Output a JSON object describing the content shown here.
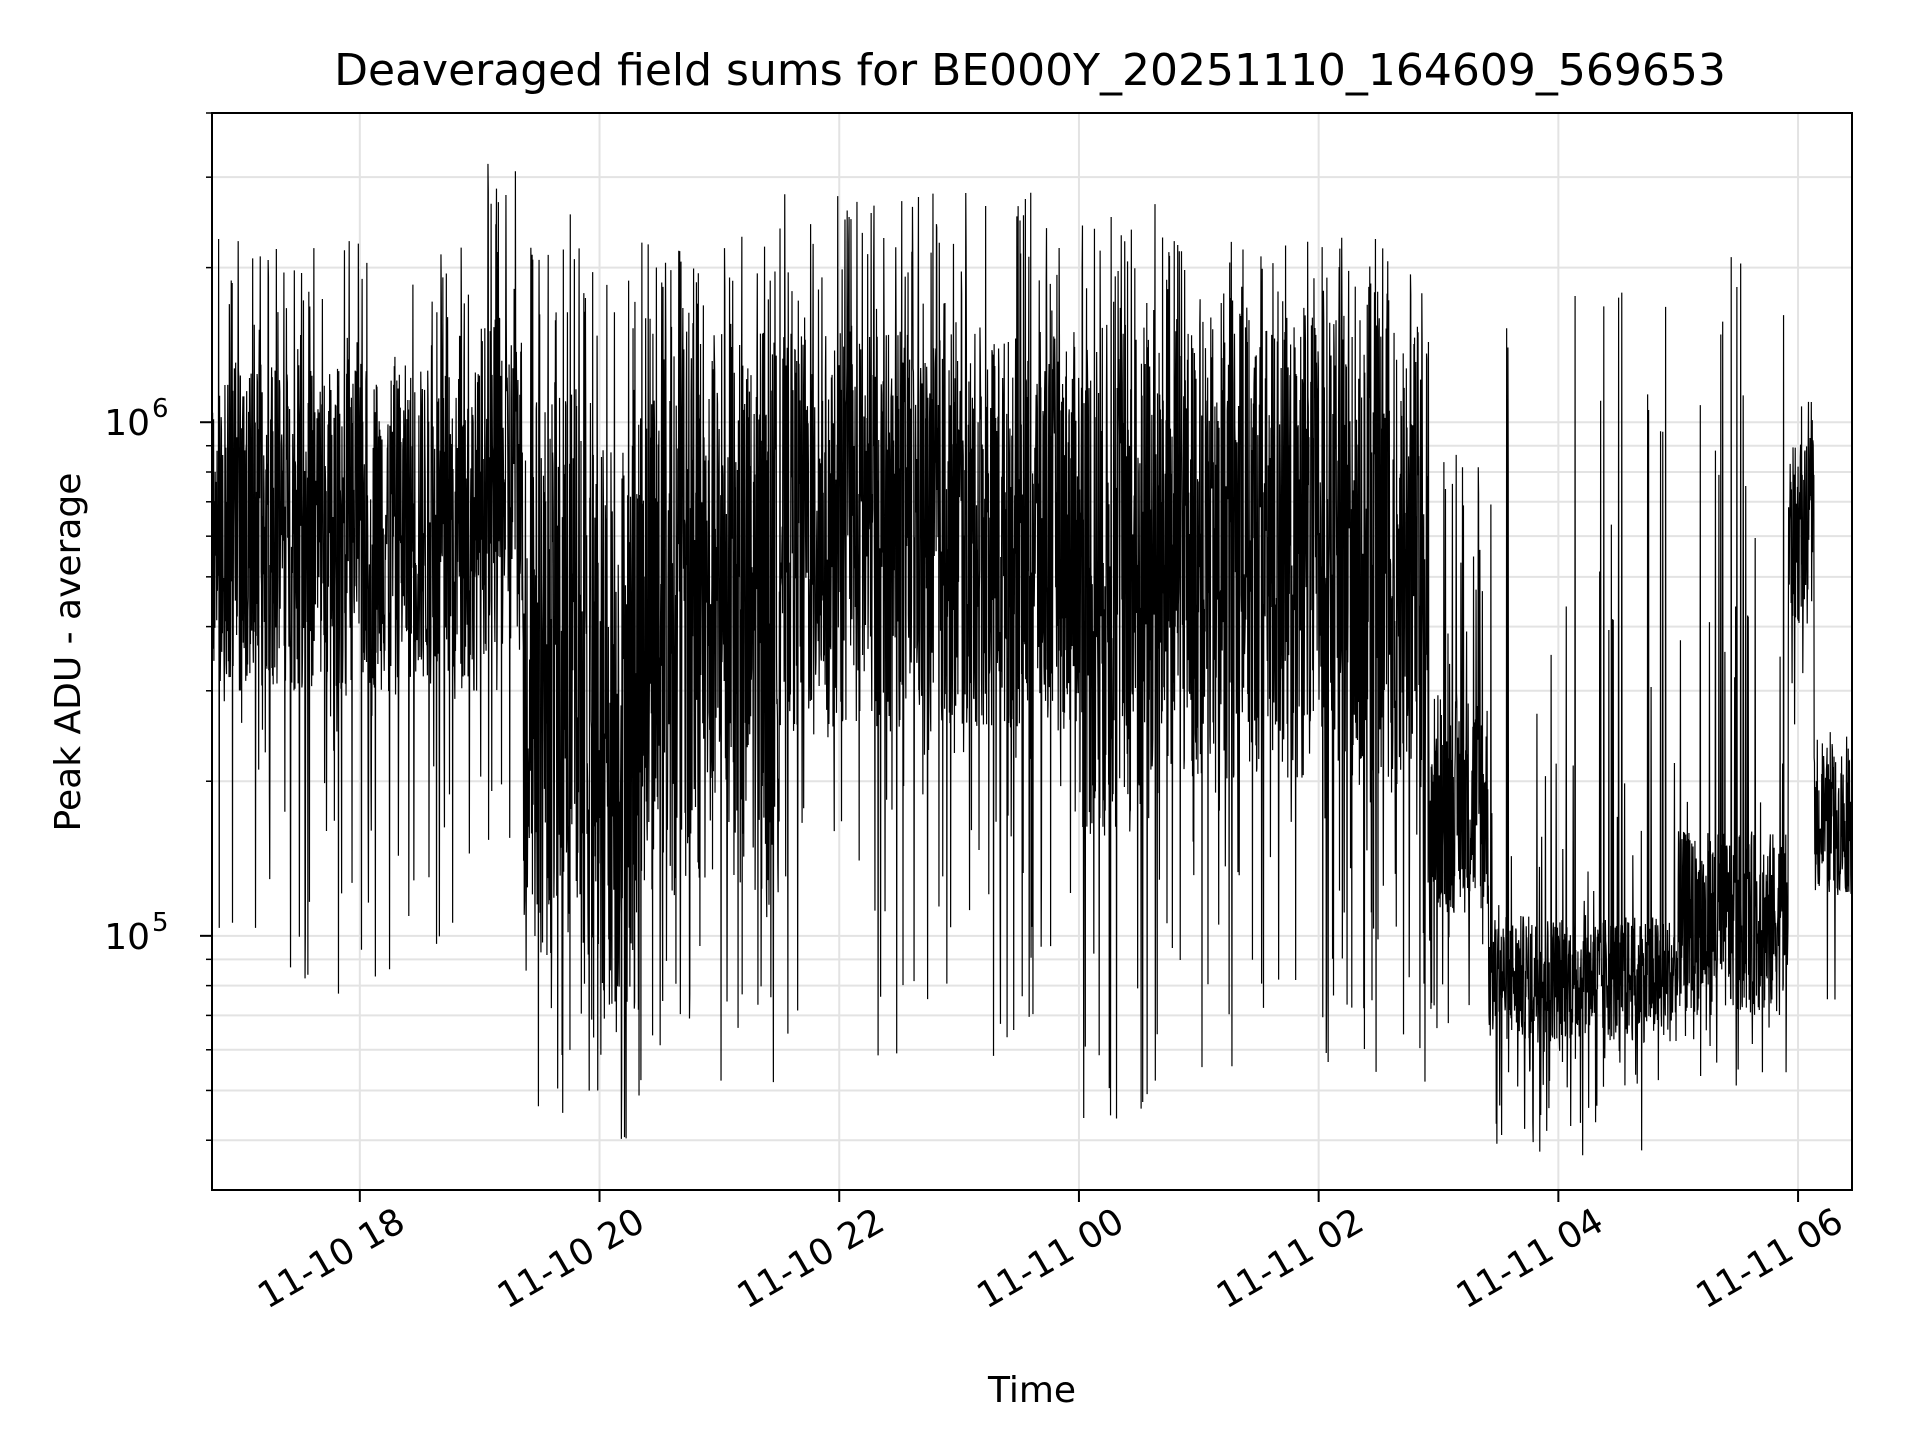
{
  "chart_data": {
    "type": "line",
    "title": "Deaveraged field sums for BE000Y_20251110_164609_569653",
    "xlabel": "Time",
    "ylabel": "Peak ADU - average",
    "x_scale": "time",
    "y_scale": "log",
    "xlim": [
      "2025-11-10 16:46",
      "2025-11-11 06:27"
    ],
    "ylim": [
      32000,
      4000000
    ],
    "x_ticks": [
      "11-10 18",
      "11-10 20",
      "11-10 22",
      "11-11 00",
      "11-11 02",
      "11-11 04",
      "11-11 06"
    ],
    "x_tick_times": [
      "2025-11-10 18:00",
      "2025-11-10 20:00",
      "2025-11-10 22:00",
      "2025-11-11 00:00",
      "2025-11-11 02:00",
      "2025-11-11 04:00",
      "2025-11-11 06:00"
    ],
    "y_ticks": [
      {
        "base": "10",
        "exp": "5",
        "value": 100000
      },
      {
        "base": "10",
        "exp": "6",
        "value": 1000000
      }
    ],
    "grid": true,
    "line_color": "#000000",
    "segments": [
      {
        "start": "2025-11-10 16:46",
        "end": "2025-11-10 19:00",
        "top": 2300000,
        "band_high": 1300000,
        "band_low": 300000,
        "bottom": 75000
      },
      {
        "start": "2025-11-10 19:00",
        "end": "2025-11-10 19:22",
        "top": 3200000,
        "band_high": 1600000,
        "band_low": 350000,
        "bottom": 105000
      },
      {
        "start": "2025-11-10 19:22",
        "end": "2025-11-10 19:50",
        "top": 2900000,
        "band_high": 1200000,
        "band_low": 90000,
        "bottom": 40000
      },
      {
        "start": "2025-11-10 19:50",
        "end": "2025-11-10 20:20",
        "top": 2000000,
        "band_high": 1000000,
        "band_low": 70000,
        "bottom": 40000
      },
      {
        "start": "2025-11-10 20:20",
        "end": "2025-11-10 21:30",
        "top": 2300000,
        "band_high": 1400000,
        "band_low": 120000,
        "bottom": 48000
      },
      {
        "start": "2025-11-10 21:30",
        "end": "2025-11-11 00:00",
        "top": 2800000,
        "band_high": 1500000,
        "band_low": 250000,
        "bottom": 58000
      },
      {
        "start": "2025-11-11 00:00",
        "end": "2025-11-11 00:40",
        "top": 2700000,
        "band_high": 1600000,
        "band_low": 150000,
        "bottom": 40000
      },
      {
        "start": "2025-11-11 00:40",
        "end": "2025-11-11 02:55",
        "top": 2300000,
        "band_high": 1600000,
        "band_low": 200000,
        "bottom": 52000
      },
      {
        "start": "2025-11-11 02:55",
        "end": "2025-11-11 03:25",
        "top": 900000,
        "band_high": 300000,
        "band_low": 110000,
        "bottom": 60000
      },
      {
        "start": "2025-11-11 03:25",
        "end": "2025-11-11 05:00",
        "top": 1900000,
        "band_high": 110000,
        "band_low": 62000,
        "bottom": 37000
      },
      {
        "start": "2025-11-11 05:00",
        "end": "2025-11-11 05:55",
        "top": 2100000,
        "band_high": 160000,
        "band_low": 70000,
        "bottom": 50000
      },
      {
        "start": "2025-11-11 05:55",
        "end": "2025-11-11 06:08",
        "top": 1100000,
        "band_high": 900000,
        "band_low": 400000,
        "bottom": 250000
      },
      {
        "start": "2025-11-11 06:08",
        "end": "2025-11-11 06:27",
        "top": 250000,
        "band_high": 220000,
        "band_low": 120000,
        "bottom": 65000
      }
    ]
  }
}
